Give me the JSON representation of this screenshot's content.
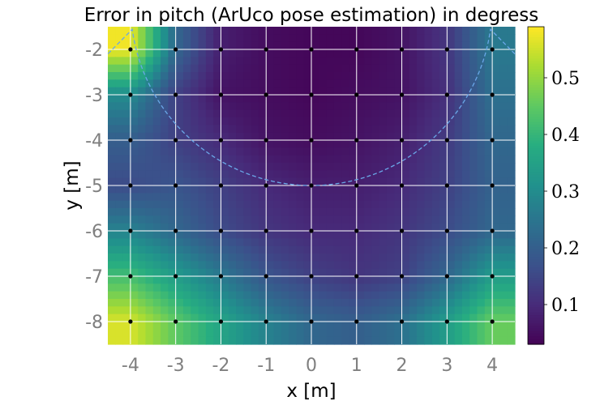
{
  "chart_data": {
    "type": "heatmap",
    "title": "Error in pitch (ArUco pose estimation) in degress",
    "xlabel": "x [m]",
    "ylabel": "y [m]",
    "xlim": [
      -4.5,
      4.5
    ],
    "ylim": [
      -8.5,
      -1.5
    ],
    "x_ticks": [
      "-4",
      "-3",
      "-2",
      "-1",
      "0",
      "1",
      "2",
      "3",
      "4"
    ],
    "y_ticks": [
      "-2",
      "-3",
      "-4",
      "-5",
      "-6",
      "-7",
      "-8"
    ],
    "grid": true,
    "colormap": "viridis",
    "colorbar": {
      "range": [
        0.03,
        0.59
      ],
      "ticks": [
        "0.1",
        "0.2",
        "0.3",
        "0.4",
        "0.5"
      ]
    },
    "x": [
      -4,
      -3,
      -2,
      -1,
      0,
      1,
      2,
      3,
      4
    ],
    "y": [
      -2,
      -3,
      -4,
      -5,
      -6,
      -7,
      -8
    ],
    "z": [
      [
        0.58,
        0.22,
        0.08,
        0.05,
        0.04,
        0.04,
        0.06,
        0.12,
        0.26
      ],
      [
        0.3,
        0.14,
        0.06,
        0.05,
        0.04,
        0.05,
        0.06,
        0.11,
        0.24
      ],
      [
        0.2,
        0.14,
        0.1,
        0.06,
        0.05,
        0.06,
        0.08,
        0.13,
        0.22
      ],
      [
        0.16,
        0.18,
        0.14,
        0.1,
        0.08,
        0.08,
        0.1,
        0.14,
        0.21
      ],
      [
        0.28,
        0.22,
        0.16,
        0.12,
        0.1,
        0.1,
        0.12,
        0.16,
        0.22
      ],
      [
        0.42,
        0.34,
        0.26,
        0.18,
        0.14,
        0.12,
        0.14,
        0.22,
        0.34
      ],
      [
        0.56,
        0.45,
        0.36,
        0.28,
        0.22,
        0.2,
        0.24,
        0.34,
        0.46
      ]
    ],
    "markers": "black dots at every grid intersection",
    "annotations": [
      {
        "type": "dashed-arc",
        "center": [
          0,
          -1
        ],
        "radius": 4,
        "color": "#6aa7e8"
      }
    ]
  }
}
